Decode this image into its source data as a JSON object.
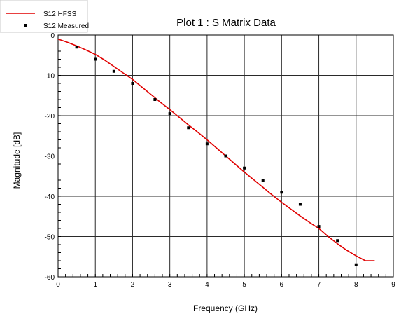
{
  "chart_data": {
    "type": "line",
    "title": "Plot 1 : S Matrix Data",
    "xlabel": "Frequency (GHz)",
    "ylabel": "Magnitude [dB]",
    "xlim": [
      0,
      9
    ],
    "ylim": [
      -60,
      0
    ],
    "x_ticks": [
      "0",
      "1",
      "2",
      "3",
      "4",
      "5",
      "6",
      "7",
      "8",
      "9"
    ],
    "y_ticks": [
      "0",
      "-10",
      "-20",
      "-30",
      "-40",
      "-50",
      "-60"
    ],
    "grid": true,
    "legend_position": "top-left",
    "series": [
      {
        "name": "S12 HFSS",
        "type": "line",
        "color": "#e00000",
        "x": [
          0,
          0.25,
          0.5,
          0.75,
          1.0,
          1.25,
          1.5,
          1.75,
          2.0,
          2.25,
          2.5,
          2.75,
          3.0,
          3.25,
          3.5,
          3.75,
          4.0,
          4.25,
          4.5,
          4.75,
          5.0,
          5.25,
          5.5,
          5.75,
          6.0,
          6.25,
          6.5,
          6.75,
          7.0,
          7.25,
          7.5,
          7.75,
          8.0,
          8.25,
          8.5
        ],
        "y": [
          -1.0,
          -1.8,
          -2.7,
          -3.7,
          -4.8,
          -6.2,
          -7.8,
          -9.4,
          -11.0,
          -12.9,
          -14.8,
          -16.7,
          -18.5,
          -20.4,
          -22.3,
          -24.1,
          -26.0,
          -28.0,
          -30.0,
          -32.0,
          -34.0,
          -35.9,
          -37.8,
          -39.7,
          -41.5,
          -43.2,
          -44.9,
          -46.5,
          -48.0,
          -50.0,
          -51.8,
          -53.4,
          -54.8,
          -56.0,
          -56.0
        ]
      },
      {
        "name": "S12 Measured",
        "type": "scatter",
        "color": "#000000",
        "x": [
          0.5,
          1.0,
          1.5,
          2.0,
          2.6,
          3.0,
          3.5,
          4.0,
          4.5,
          5.0,
          5.5,
          6.0,
          6.5,
          7.0,
          7.5,
          8.0
        ],
        "y": [
          -3,
          -6,
          -9,
          -12,
          -16,
          -19.5,
          -23,
          -27,
          -30,
          -33,
          -36,
          -39,
          -42,
          -47.5,
          -51,
          -57
        ]
      }
    ]
  }
}
